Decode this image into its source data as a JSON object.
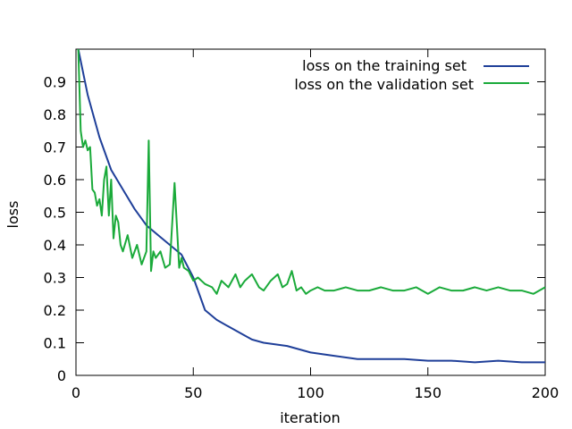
{
  "chart_data": {
    "type": "line",
    "title": "",
    "xlabel": "iteration",
    "ylabel": "loss",
    "xlim": [
      0,
      200
    ],
    "ylim": [
      0,
      1.0
    ],
    "xticks": [
      0,
      50,
      100,
      150,
      200
    ],
    "yticks": [
      0,
      0.1,
      0.2,
      0.3,
      0.4,
      0.5,
      0.6,
      0.7,
      0.8,
      0.9
    ],
    "xtick_labels": [
      "0",
      "50",
      "100",
      "150",
      "200"
    ],
    "ytick_labels": [
      "0",
      "0.1",
      "0.2",
      "0.3",
      "0.4",
      "0.5",
      "0.6",
      "0.7",
      "0.8",
      "0.9"
    ],
    "grid": false,
    "legend_position": "top-right",
    "series": [
      {
        "name": "loss on the training set",
        "color": "#1f3f99",
        "x": [
          1,
          5,
          10,
          15,
          20,
          25,
          30,
          35,
          40,
          45,
          50,
          55,
          60,
          65,
          70,
          75,
          80,
          90,
          100,
          110,
          120,
          130,
          140,
          150,
          160,
          170,
          180,
          190,
          200
        ],
        "values": [
          1.0,
          0.86,
          0.73,
          0.63,
          0.57,
          0.51,
          0.46,
          0.43,
          0.4,
          0.37,
          0.3,
          0.2,
          0.17,
          0.15,
          0.13,
          0.11,
          0.1,
          0.09,
          0.07,
          0.06,
          0.05,
          0.05,
          0.05,
          0.045,
          0.045,
          0.04,
          0.045,
          0.04,
          0.04
        ]
      },
      {
        "name": "loss on the validation set",
        "color": "#1aaa3a",
        "x": [
          1,
          2,
          3,
          4,
          5,
          6,
          7,
          8,
          9,
          10,
          11,
          12,
          13,
          14,
          15,
          16,
          17,
          18,
          19,
          20,
          22,
          24,
          26,
          28,
          30,
          31,
          32,
          33,
          34,
          36,
          38,
          40,
          42,
          44,
          45,
          46,
          48,
          50,
          52,
          55,
          58,
          60,
          62,
          65,
          68,
          70,
          72,
          75,
          78,
          80,
          83,
          86,
          88,
          90,
          92,
          94,
          96,
          98,
          100,
          103,
          106,
          110,
          115,
          120,
          125,
          130,
          135,
          140,
          145,
          150,
          155,
          160,
          165,
          170,
          175,
          180,
          185,
          190,
          195,
          200
        ],
        "values": [
          1.0,
          0.75,
          0.7,
          0.72,
          0.69,
          0.7,
          0.57,
          0.56,
          0.52,
          0.54,
          0.49,
          0.6,
          0.64,
          0.49,
          0.6,
          0.42,
          0.49,
          0.47,
          0.4,
          0.38,
          0.43,
          0.36,
          0.4,
          0.34,
          0.38,
          0.72,
          0.32,
          0.38,
          0.36,
          0.38,
          0.33,
          0.34,
          0.59,
          0.33,
          0.36,
          0.33,
          0.32,
          0.29,
          0.3,
          0.28,
          0.27,
          0.25,
          0.29,
          0.27,
          0.31,
          0.27,
          0.29,
          0.31,
          0.27,
          0.26,
          0.29,
          0.31,
          0.27,
          0.28,
          0.32,
          0.26,
          0.27,
          0.25,
          0.26,
          0.27,
          0.26,
          0.26,
          0.27,
          0.26,
          0.26,
          0.27,
          0.26,
          0.26,
          0.27,
          0.25,
          0.27,
          0.26,
          0.26,
          0.27,
          0.26,
          0.27,
          0.26,
          0.26,
          0.25,
          0.27
        ]
      }
    ]
  }
}
